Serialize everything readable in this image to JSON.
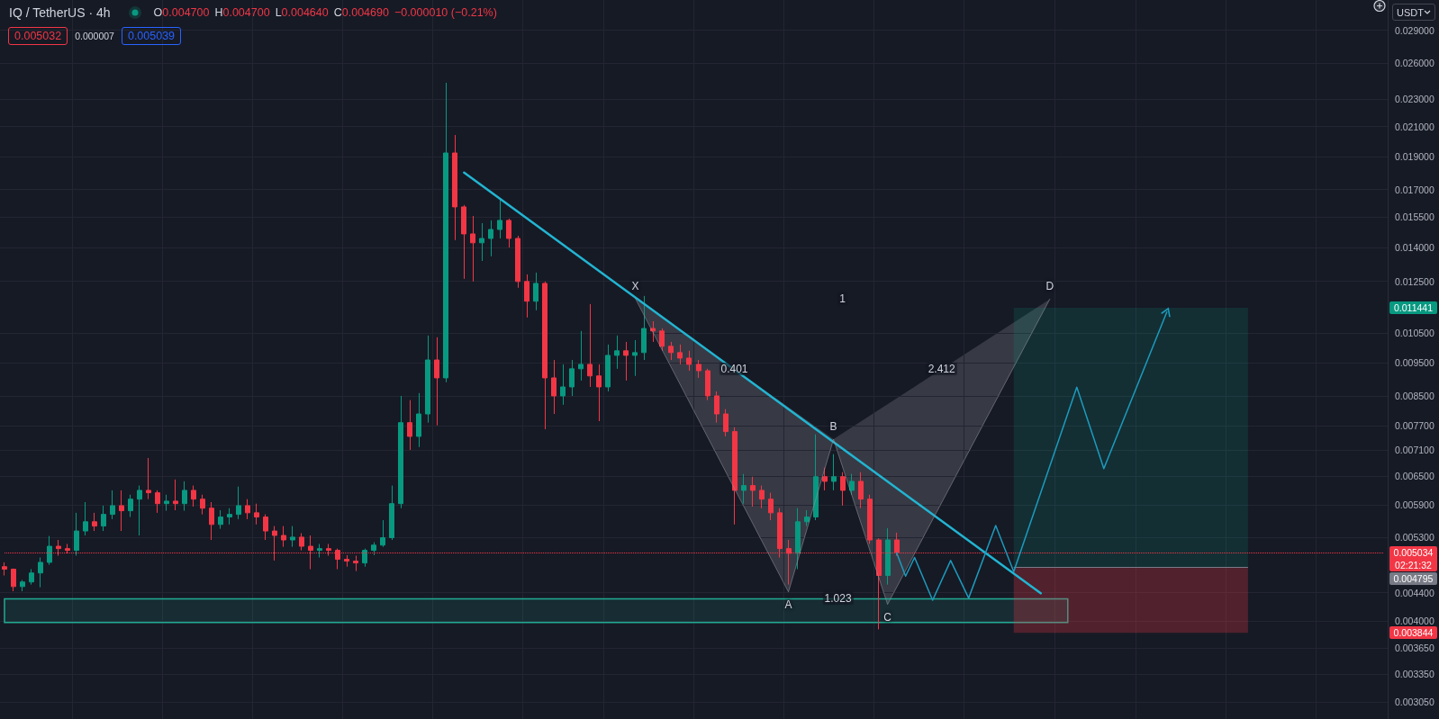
{
  "chart_data": {
    "type": "candlestick",
    "title": "IQ / TetherUS · 4h",
    "ylabel": "USDT",
    "categories": [
      null,
      null,
      null,
      null,
      null,
      null,
      null,
      null,
      null,
      null,
      null,
      null,
      null,
      null,
      null,
      null,
      null,
      null,
      null,
      null,
      null,
      null,
      null,
      null,
      null,
      null,
      null,
      null,
      null,
      null,
      null,
      null,
      null,
      null,
      null,
      null,
      null,
      null,
      null,
      null,
      null,
      null,
      null,
      null,
      null,
      null,
      null,
      null,
      null,
      null,
      null,
      null,
      null,
      null,
      null,
      null,
      null,
      null,
      null,
      null,
      null,
      null,
      null,
      null,
      null,
      null,
      null,
      null,
      null,
      null,
      null,
      null,
      null,
      null,
      null,
      null,
      null,
      null,
      null,
      null,
      null,
      null,
      null,
      null,
      null,
      null,
      null,
      null,
      null,
      null,
      null,
      null,
      null,
      null,
      null,
      null,
      null,
      null,
      null,
      null,
      null,
      null,
      null,
      null,
      null,
      null,
      null,
      null,
      null,
      null,
      null,
      null,
      null,
      null,
      null,
      null,
      null,
      null,
      null,
      null,
      null,
      null,
      null,
      null,
      null,
      null,
      null,
      null,
      null,
      null,
      null,
      null,
      null,
      null,
      null,
      null,
      null,
      null,
      null,
      null,
      null,
      null,
      null,
      null,
      null,
      null,
      null,
      null,
      null,
      null,
      null,
      null,
      null,
      null
    ],
    "ohlc": [
      [
        0.0048,
        0.00487,
        0.00466,
        0.00476
      ],
      [
        0.00476,
        0.00477,
        0.00442,
        0.00449
      ],
      [
        0.00449,
        0.00459,
        0.00442,
        0.00456
      ],
      [
        0.00456,
        0.00476,
        0.00452,
        0.0047
      ],
      [
        0.0047,
        0.00495,
        0.00448,
        0.00487
      ],
      [
        0.00487,
        0.00532,
        0.00483,
        0.00514
      ],
      [
        0.00514,
        0.00525,
        0.00498,
        0.0051
      ],
      [
        0.0051,
        0.00518,
        0.00502,
        0.00507
      ],
      [
        0.00507,
        0.00575,
        0.00498,
        0.00541
      ],
      [
        0.00541,
        0.00596,
        0.00533,
        0.00558
      ],
      [
        0.00558,
        0.00575,
        0.00541,
        0.0055
      ],
      [
        0.0055,
        0.00589,
        0.00541,
        0.00572
      ],
      [
        0.00572,
        0.0062,
        0.00563,
        0.00589
      ],
      [
        0.00589,
        0.0062,
        0.00541,
        0.00579
      ],
      [
        0.00579,
        0.00611,
        0.00567,
        0.00602
      ],
      [
        0.00602,
        0.0063,
        0.00533,
        0.0062
      ],
      [
        0.0062,
        0.00691,
        0.00602,
        0.00615
      ],
      [
        0.00615,
        0.0062,
        0.00575,
        0.00593
      ],
      [
        0.00593,
        0.00611,
        0.00579,
        0.00598
      ],
      [
        0.00598,
        0.00643,
        0.0058,
        0.00593
      ],
      [
        0.00593,
        0.00639,
        0.00579,
        0.0062
      ],
      [
        0.0062,
        0.0063,
        0.00587,
        0.00602
      ],
      [
        0.00602,
        0.00611,
        0.00572,
        0.00584
      ],
      [
        0.00584,
        0.00596,
        0.00525,
        0.00553
      ],
      [
        0.00553,
        0.0058,
        0.00545,
        0.00567
      ],
      [
        0.00567,
        0.00584,
        0.00553,
        0.00572
      ],
      [
        0.00572,
        0.00628,
        0.00563,
        0.00589
      ],
      [
        0.00589,
        0.00602,
        0.00563,
        0.00575
      ],
      [
        0.00575,
        0.00593,
        0.00553,
        0.00567
      ],
      [
        0.00567,
        0.00572,
        0.00525,
        0.00541
      ],
      [
        0.00541,
        0.0055,
        0.0049,
        0.00533
      ],
      [
        0.00533,
        0.0055,
        0.00513,
        0.00525
      ],
      [
        0.00525,
        0.0055,
        0.00513,
        0.0053
      ],
      [
        0.0053,
        0.00537,
        0.00507,
        0.00514
      ],
      [
        0.00514,
        0.00533,
        0.00476,
        0.00507
      ],
      [
        0.00507,
        0.00518,
        0.00495,
        0.0051
      ],
      [
        0.0051,
        0.00518,
        0.00498,
        0.00507
      ],
      [
        0.00507,
        0.0051,
        0.00476,
        0.00492
      ],
      [
        0.00492,
        0.00499,
        0.0048,
        0.00489
      ],
      [
        0.00489,
        0.00498,
        0.00473,
        0.00486
      ],
      [
        0.00486,
        0.0051,
        0.0048,
        0.00507
      ],
      [
        0.00507,
        0.00521,
        0.00499,
        0.00516
      ],
      [
        0.00516,
        0.00561,
        0.00513,
        0.00529
      ],
      [
        0.00529,
        0.0063,
        0.00525,
        0.00593
      ],
      [
        0.00593,
        0.00851,
        0.00584,
        0.00778
      ],
      [
        0.00778,
        0.00839,
        0.0071,
        0.00743
      ],
      [
        0.00743,
        0.00859,
        0.00717,
        0.00801
      ],
      [
        0.00801,
        0.01042,
        0.00778,
        0.0096
      ],
      [
        0.0096,
        0.01036,
        0.00771,
        0.00904
      ],
      [
        0.00904,
        0.02432,
        0.00891,
        0.01922
      ],
      [
        0.01922,
        0.02041,
        0.01435,
        0.01604
      ],
      [
        0.01604,
        0.01614,
        0.0126,
        0.01465
      ],
      [
        0.01465,
        0.01556,
        0.01249,
        0.01422
      ],
      [
        0.01422,
        0.01519,
        0.01338,
        0.01443
      ],
      [
        0.01443,
        0.01533,
        0.01359,
        0.01487
      ],
      [
        0.01487,
        0.01643,
        0.01443,
        0.01533
      ],
      [
        0.01533,
        0.01542,
        0.014,
        0.01443
      ],
      [
        0.01443,
        0.01456,
        0.01223,
        0.01249
      ],
      [
        0.01249,
        0.01279,
        0.01107,
        0.01169
      ],
      [
        0.01169,
        0.01287,
        0.01134,
        0.01241
      ],
      [
        0.01241,
        0.01249,
        0.00761,
        0.00904
      ],
      [
        0.00904,
        0.0096,
        0.00801,
        0.00851
      ],
      [
        0.00851,
        0.00946,
        0.00826,
        0.00877
      ],
      [
        0.00877,
        0.0096,
        0.00851,
        0.00932
      ],
      [
        0.00932,
        0.01058,
        0.00896,
        0.00946
      ],
      [
        0.00946,
        0.01158,
        0.00877,
        0.0091
      ],
      [
        0.0091,
        0.00946,
        0.00782,
        0.00877
      ],
      [
        0.00877,
        0.01011,
        0.00864,
        0.00975
      ],
      [
        0.00975,
        0.01042,
        0.00932,
        0.0099
      ],
      [
        0.0099,
        0.0102,
        0.00896,
        0.00975
      ],
      [
        0.00975,
        0.01026,
        0.0091,
        0.00984
      ],
      [
        0.00984,
        0.0119,
        0.0096,
        0.01067
      ],
      [
        0.01067,
        0.01093,
        0.0102,
        0.01058
      ],
      [
        0.01058,
        0.01067,
        0.0099,
        0.01005
      ],
      [
        0.01005,
        0.0102,
        0.0096,
        0.00984
      ],
      [
        0.00984,
        0.01011,
        0.00946,
        0.00966
      ],
      [
        0.00966,
        0.0099,
        0.00926,
        0.00946
      ],
      [
        0.00946,
        0.0096,
        0.00904,
        0.00926
      ],
      [
        0.00926,
        0.00932,
        0.00839,
        0.00851
      ],
      [
        0.00851,
        0.00864,
        0.00778,
        0.00801
      ],
      [
        0.00801,
        0.00814,
        0.00743,
        0.00755
      ],
      [
        0.00755,
        0.00766,
        0.00553,
        0.0062
      ],
      [
        0.0062,
        0.00655,
        0.00593,
        0.0063
      ],
      [
        0.0063,
        0.00649,
        0.00587,
        0.0062
      ],
      [
        0.0062,
        0.0063,
        0.00584,
        0.00602
      ],
      [
        0.00602,
        0.00615,
        0.00561,
        0.00575
      ],
      [
        0.00575,
        0.00584,
        0.00495,
        0.0051
      ],
      [
        0.0051,
        0.00525,
        0.00452,
        0.00502
      ],
      [
        0.00502,
        0.00584,
        0.00476,
        0.00558
      ],
      [
        0.00558,
        0.0058,
        0.0055,
        0.00567
      ],
      [
        0.00567,
        0.00748,
        0.00561,
        0.00649
      ],
      [
        0.00649,
        0.00669,
        0.0062,
        0.00639
      ],
      [
        0.00639,
        0.007,
        0.0062,
        0.00649
      ],
      [
        0.00649,
        0.00659,
        0.00589,
        0.0062
      ],
      [
        0.0062,
        0.00655,
        0.00611,
        0.00639
      ],
      [
        0.00639,
        0.00659,
        0.00584,
        0.00602
      ],
      [
        0.00602,
        0.00611,
        0.00518,
        0.00525
      ],
      [
        0.00525,
        0.00528,
        0.00389,
        0.00466
      ],
      [
        0.00466,
        0.00546,
        0.00452,
        0.00525
      ],
      [
        0.00525,
        0.00538,
        0.00498,
        0.005034
      ],
      null,
      null,
      null,
      null,
      null,
      null,
      null,
      null,
      null,
      null,
      null,
      null,
      null,
      null,
      null,
      null,
      null,
      null,
      null,
      null,
      null,
      null,
      null,
      null,
      null,
      null,
      null,
      null,
      null,
      null,
      null,
      null,
      null,
      null,
      null,
      null,
      null,
      null,
      null,
      null,
      null,
      null,
      null,
      null,
      null,
      null,
      null,
      null,
      null,
      null,
      null,
      null,
      null,
      null
    ],
    "colors": [
      "#f23645",
      "#f23645",
      "#089981",
      "#089981",
      "#089981",
      "#089981",
      "#f23645",
      "#f23645",
      "#089981",
      "#089981",
      "#f23645",
      "#089981",
      "#089981",
      "#f23645",
      "#089981",
      "#089981",
      "#f23645",
      "#f23645",
      "#089981",
      "#f23645",
      "#089981",
      "#f23645",
      "#f23645",
      "#f23645",
      "#089981",
      "#089981",
      "#089981",
      "#f23645",
      "#f23645",
      "#f23645",
      "#f23645",
      "#f23645",
      "#089981",
      "#f23645",
      "#f23645",
      "#089981",
      "#f23645",
      "#f23645",
      "#f23645",
      "#f23645",
      "#089981",
      "#089981",
      "#089981",
      "#089981",
      "#089981",
      "#f23645",
      "#089981",
      "#089981",
      "#f23645",
      "#089981",
      "#f23645",
      "#f23645",
      "#f23645",
      "#089981",
      "#089981",
      "#089981",
      "#f23645",
      "#f23645",
      "#f23645",
      "#089981",
      "#f23645",
      "#f23645",
      "#089981",
      "#089981",
      "#089981",
      "#f23645",
      "#f23645",
      "#089981",
      "#089981",
      "#f23645",
      "#089981",
      "#089981",
      "#f23645",
      "#f23645",
      "#f23645",
      "#f23645",
      "#f23645",
      "#f23645",
      "#f23645",
      "#f23645",
      "#f23645",
      "#f23645",
      "#089981",
      "#f23645",
      "#f23645",
      "#f23645",
      "#f23645",
      "#f23645",
      "#089981",
      "#089981",
      "#089981",
      "#f23645",
      "#089981",
      "#f23645",
      "#089981",
      "#f23645",
      "#f23645",
      "#f23645",
      "#089981",
      "#f23645",
      null,
      null,
      null,
      null,
      null,
      null,
      null,
      null,
      null,
      null,
      null,
      null,
      null,
      null,
      null,
      null,
      null,
      null,
      null,
      null,
      null,
      null,
      null,
      null,
      null,
      null,
      null,
      null,
      null,
      null,
      null,
      null,
      null,
      null,
      null,
      null,
      null,
      null,
      null,
      null,
      null,
      null,
      null,
      null,
      null,
      null,
      null,
      null,
      null,
      null,
      null,
      null,
      null,
      null
    ],
    "series": [
      {
        "type": "line",
        "color": "#22b5d2",
        "values": [
          null,
          null,
          null,
          null,
          null,
          null,
          null,
          null,
          null,
          null,
          null,
          null,
          null,
          null,
          null,
          null,
          null,
          null,
          null,
          null,
          null,
          null,
          null,
          null,
          null,
          null,
          null,
          null,
          null,
          null,
          null,
          null,
          null,
          null,
          null,
          null,
          null,
          null,
          null,
          null,
          null,
          null,
          null,
          null,
          null,
          null,
          null,
          null,
          null,
          null,
          null,
          0.018,
          null,
          null,
          null,
          null,
          null,
          null,
          null,
          null,
          null,
          null,
          null,
          null,
          null,
          null,
          null,
          null,
          null,
          null,
          null,
          null,
          null,
          null,
          null,
          null,
          null,
          null,
          null,
          null,
          null,
          null,
          null,
          null,
          null,
          null,
          null,
          null,
          null,
          null,
          null,
          null,
          null,
          null,
          null,
          null,
          null,
          null,
          null,
          null,
          null,
          null,
          null,
          null,
          null,
          null,
          null,
          null,
          null,
          null,
          null,
          null,
          null,
          null,
          null,
          0.00439,
          null,
          null,
          null,
          null,
          null,
          null,
          null,
          null,
          null,
          null,
          null,
          null,
          null,
          null,
          null,
          null,
          null,
          null,
          null,
          null,
          null,
          null,
          null,
          null,
          null,
          null,
          null,
          null,
          null,
          null,
          null,
          null,
          null,
          null,
          null,
          null,
          null,
          null
        ]
      },
      {
        "type": "line",
        "color": "#9598a1",
        "values": [
          null,
          null,
          null,
          null,
          null,
          null,
          null,
          null,
          null,
          null,
          null,
          null,
          null,
          null,
          null,
          null,
          null,
          null,
          null,
          null,
          null,
          null,
          null,
          null,
          null,
          null,
          null,
          null,
          null,
          null,
          null,
          null,
          null,
          null,
          null,
          null,
          null,
          null,
          null,
          null,
          null,
          null,
          null,
          null,
          null,
          null,
          null,
          null,
          null,
          null,
          null,
          null,
          null,
          null,
          null,
          null,
          null,
          null,
          null,
          null,
          null,
          null,
          null,
          null,
          null,
          null,
          null,
          null,
          null,
          null,
          0.0118,
          null,
          null,
          null,
          null,
          null,
          null,
          null,
          null,
          null,
          null,
          null,
          null,
          null,
          null,
          null,
          null,
          0.00441,
          null,
          null,
          null,
          null,
          0.00736,
          null,
          null,
          null,
          null,
          null,
          0.00423,
          null,
          null,
          null,
          null,
          null,
          null,
          null,
          null,
          null,
          null,
          null,
          null,
          null,
          null,
          null,
          null,
          null,
          0.01177,
          null,
          null,
          null,
          null,
          null,
          null,
          null,
          null,
          null,
          null,
          null,
          null,
          null,
          null,
          null,
          null,
          null,
          null,
          null,
          null,
          null,
          null,
          null,
          null,
          null,
          null,
          null,
          null,
          null,
          null,
          null,
          null,
          null,
          null,
          null,
          null,
          null
        ]
      },
      {
        "type": "line",
        "color": "#1d9bbd",
        "values": [
          null,
          null,
          null,
          null,
          null,
          null,
          null,
          null,
          null,
          null,
          null,
          null,
          null,
          null,
          null,
          null,
          null,
          null,
          null,
          null,
          null,
          null,
          null,
          null,
          null,
          null,
          null,
          null,
          null,
          null,
          null,
          null,
          null,
          null,
          null,
          null,
          null,
          null,
          null,
          null,
          null,
          null,
          null,
          null,
          null,
          null,
          null,
          null,
          null,
          null,
          null,
          null,
          null,
          null,
          null,
          null,
          null,
          null,
          null,
          null,
          null,
          null,
          null,
          null,
          null,
          null,
          null,
          null,
          null,
          null,
          null,
          null,
          null,
          null,
          null,
          null,
          null,
          null,
          null,
          null,
          null,
          null,
          null,
          null,
          null,
          null,
          null,
          null,
          null,
          null,
          null,
          null,
          null,
          null,
          null,
          null,
          null,
          null,
          null,
          0.00503,
          0.00465,
          0.00495,
          null,
          0.00429,
          null,
          0.0049,
          null,
          0.00432,
          null,
          null,
          0.00551,
          null,
          0.00472,
          null,
          null,
          null,
          null,
          null,
          null,
          0.00876,
          null,
          null,
          0.00667,
          null,
          null,
          null,
          null,
          null,
          null,
          0.01128,
          null,
          null,
          null,
          null,
          null,
          null,
          null,
          null,
          null,
          null,
          null,
          null,
          null,
          null,
          null,
          null,
          null,
          null,
          null,
          null,
          null,
          null,
          null,
          null
        ]
      }
    ],
    "ylim": [
      0.00288,
      0.0321
    ],
    "yticks": [
      {
        "value": 0.00305,
        "label": "0.003050"
      },
      {
        "value": 0.00335,
        "label": "0.003350"
      },
      {
        "value": 0.00365,
        "label": "0.003650"
      },
      {
        "value": 0.004,
        "label": "0.004000"
      },
      {
        "value": 0.0044,
        "label": "0.004400"
      },
      {
        "value": 0.0053,
        "label": "0.005300"
      },
      {
        "value": 0.0059,
        "label": "0.005900"
      },
      {
        "value": 0.0065,
        "label": "0.006500"
      },
      {
        "value": 0.0071,
        "label": "0.007100"
      },
      {
        "value": 0.0077,
        "label": "0.007700"
      },
      {
        "value": 0.0085,
        "label": "0.008500"
      },
      {
        "value": 0.0095,
        "label": "0.009500"
      },
      {
        "value": 0.0105,
        "label": "0.010500"
      },
      {
        "value": 0.0125,
        "label": "0.012500"
      },
      {
        "value": 0.014,
        "label": "0.014000"
      },
      {
        "value": 0.0155,
        "label": "0.015500"
      },
      {
        "value": 0.017,
        "label": "0.017000"
      },
      {
        "value": 0.019,
        "label": "0.019000"
      },
      {
        "value": 0.021,
        "label": "0.021000"
      },
      {
        "value": 0.023,
        "label": "0.023000"
      },
      {
        "value": 0.026,
        "label": "0.026000"
      },
      {
        "value": 0.029,
        "label": "0.029000"
      }
    ],
    "log": "y",
    "grid": true,
    "tick_labels": "y",
    "ref_lines": [
      {
        "axis": "y",
        "value": 0.005034,
        "label": "0.005034",
        "color": "#f23645",
        "line_style": "dotted"
      },
      {
        "axis": "y",
        "value": 0.004795,
        "color": "#787b86"
      }
    ],
    "bands": [
      {
        "axis": "y",
        "from": 0.00398,
        "to": 0.00431,
        "color": "#22ab94"
      },
      {
        "axis": "y",
        "from": 0.004795,
        "to": 0.011441,
        "color": "#089981"
      },
      {
        "axis": "y",
        "from": 0.003844,
        "to": 0.004795,
        "color": "#f23645"
      }
    ],
    "annotations": [
      {
        "text": "X",
        "y": 0.0118
      },
      {
        "text": "A",
        "y": 0.00441
      },
      {
        "text": "B",
        "y": 0.00736
      },
      {
        "text": "C",
        "y": 0.00423
      },
      {
        "text": "D",
        "y": 0.01177
      },
      "1",
      "0.401",
      "1.023",
      "2.412",
      "O0.004700",
      "H0.004700",
      "L0.004640",
      "C0.004690",
      "−0.000010 (−0.21%)",
      "0.005032",
      "0.000007",
      "0.005039",
      "02:21:32",
      "0.011441",
      "0.004795",
      "0.003844"
    ]
  }
}
